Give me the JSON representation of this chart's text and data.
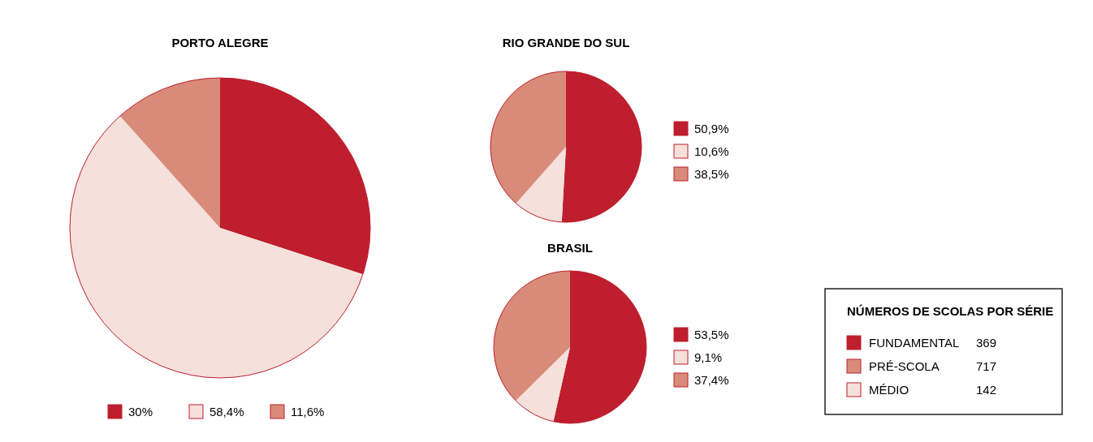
{
  "chart_data": [
    {
      "type": "pie",
      "title": "PORTO ALEGRE",
      "categories": [
        "30%",
        "58,4%",
        "11,6%"
      ],
      "values": [
        30,
        58.4,
        11.6
      ],
      "colors": [
        "#be1e2d",
        "#f5e0db",
        "#d98b7a"
      ],
      "legend": "bottom"
    },
    {
      "type": "pie",
      "title": "RIO GRANDE DO SUL",
      "categories": [
        "50,9%",
        "10,6%",
        "38,5%"
      ],
      "values": [
        50.9,
        10.6,
        38.5
      ],
      "colors": [
        "#be1e2d",
        "#f5e0db",
        "#d98b7a"
      ],
      "legend": "right"
    },
    {
      "type": "pie",
      "title": "BRASIL",
      "categories": [
        "53,5%",
        "9,1%",
        "37,4%"
      ],
      "values": [
        53.5,
        9.1,
        37.4
      ],
      "colors": [
        "#be1e2d",
        "#f5e0db",
        "#d98b7a"
      ],
      "legend": "right"
    },
    {
      "type": "other",
      "title": "NÚMEROS DE SCOLAS POR SÉRIE",
      "categories": [
        "FUNDAMENTAL",
        "PRÉ-SCOLA",
        "MÉDIO"
      ],
      "values": [
        369,
        717,
        142
      ],
      "colors": [
        "#be1e2d",
        "#d98b7a",
        "#f5e0db"
      ],
      "data_labels": true
    }
  ]
}
